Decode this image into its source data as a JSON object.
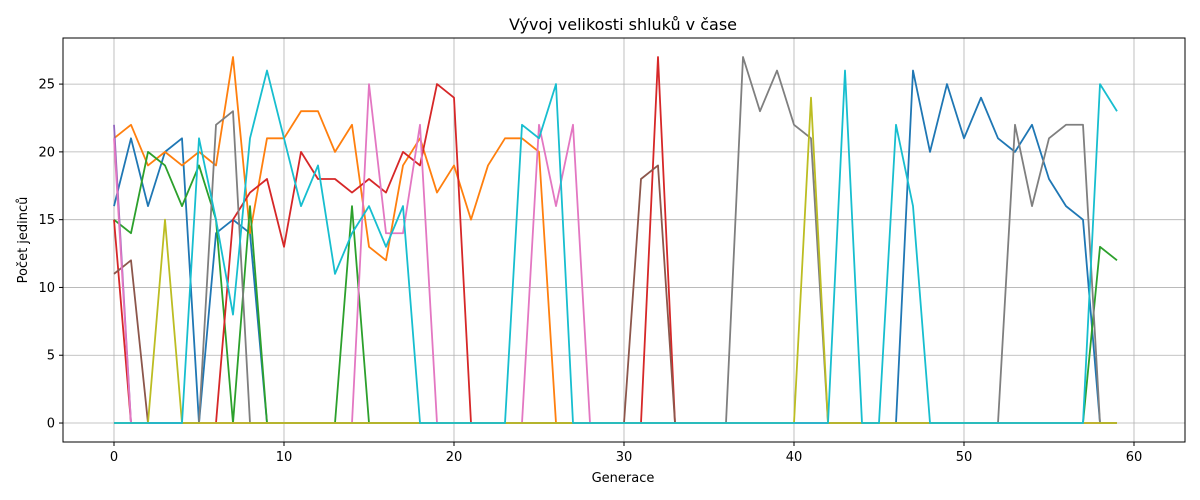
{
  "chart_data": {
    "type": "line",
    "title": "Vývoj velikosti shluků v čase",
    "xlabel": "Generace",
    "ylabel": "Počet jedinců",
    "xlim": [
      -3,
      63
    ],
    "ylim": [
      -1.4,
      28.4
    ],
    "xticks": [
      0,
      10,
      20,
      30,
      40,
      50,
      60
    ],
    "yticks": [
      0,
      5,
      10,
      15,
      20,
      25
    ],
    "grid": true,
    "x": [
      0,
      1,
      2,
      3,
      4,
      5,
      6,
      7,
      8,
      9,
      10,
      11,
      12,
      13,
      14,
      15,
      16,
      17,
      18,
      19,
      20,
      21,
      22,
      23,
      24,
      25,
      26,
      27,
      28,
      29,
      30,
      31,
      32,
      33,
      34,
      35,
      36,
      37,
      38,
      39,
      40,
      41,
      42,
      43,
      44,
      45,
      46,
      47,
      48,
      49,
      50,
      51,
      52,
      53,
      54,
      55,
      56,
      57,
      58,
      59
    ],
    "series": [
      {
        "color": "#1f77b4",
        "values": [
          16,
          21,
          16,
          20,
          21,
          0,
          14,
          15,
          14,
          0,
          0,
          0,
          0,
          0,
          0,
          0,
          0,
          0,
          0,
          0,
          0,
          0,
          0,
          0,
          0,
          0,
          0,
          0,
          0,
          0,
          0,
          0,
          0,
          0,
          0,
          0,
          0,
          0,
          0,
          0,
          0,
          0,
          0,
          0,
          0,
          0,
          0,
          26,
          20,
          25,
          21,
          24,
          21,
          20,
          22,
          18,
          16,
          15,
          0,
          0
        ]
      },
      {
        "color": "#ff7f0e",
        "values": [
          21,
          22,
          19,
          20,
          19,
          20,
          19,
          27,
          14,
          21,
          21,
          23,
          23,
          20,
          22,
          13,
          12,
          19,
          21,
          17,
          19,
          15,
          19,
          21,
          21,
          20,
          0,
          0,
          0,
          0,
          0,
          0,
          0,
          0,
          0,
          0,
          0,
          0,
          0,
          0,
          0,
          0,
          0,
          0,
          0,
          0,
          0,
          0,
          0,
          0,
          0,
          0,
          0,
          0,
          0,
          0,
          0,
          0,
          0,
          0
        ]
      },
      {
        "color": "#2ca02c",
        "values": [
          15,
          14,
          20,
          19,
          16,
          19,
          15,
          0,
          16,
          0,
          0,
          0,
          0,
          0,
          16,
          0,
          0,
          0,
          0,
          0,
          0,
          0,
          0,
          0,
          0,
          0,
          0,
          0,
          0,
          0,
          0,
          0,
          0,
          0,
          0,
          0,
          0,
          0,
          0,
          0,
          0,
          0,
          0,
          0,
          0,
          0,
          0,
          0,
          0,
          0,
          0,
          0,
          0,
          0,
          0,
          0,
          0,
          0,
          13,
          12
        ]
      },
      {
        "color": "#d62728",
        "values": [
          15,
          0,
          0,
          0,
          0,
          0,
          0,
          15,
          17,
          18,
          13,
          20,
          18,
          18,
          17,
          18,
          17,
          20,
          19,
          25,
          24,
          0,
          0,
          0,
          0,
          0,
          0,
          0,
          0,
          0,
          0,
          0,
          27,
          0,
          0,
          0,
          0,
          0,
          0,
          0,
          0,
          0,
          0,
          0,
          0,
          0,
          0,
          0,
          0,
          0,
          0,
          0,
          0,
          0,
          0,
          0,
          0,
          0,
          0,
          0
        ]
      },
      {
        "color": "#9467bd",
        "values": [
          22,
          0,
          0,
          0,
          0,
          0,
          0,
          0,
          0,
          0,
          0,
          0,
          0,
          0,
          0,
          0,
          0,
          0,
          0,
          0,
          0,
          0,
          0,
          0,
          0,
          0,
          0,
          0,
          0,
          0,
          0,
          0,
          0,
          0,
          0,
          0,
          0,
          0,
          0,
          0,
          0,
          0,
          0,
          0,
          0,
          0,
          0,
          0,
          0,
          0,
          0,
          0,
          0,
          0,
          0,
          0,
          0,
          0,
          0,
          0
        ]
      },
      {
        "color": "#8c564b",
        "values": [
          11,
          12,
          0,
          0,
          0,
          0,
          0,
          0,
          0,
          0,
          0,
          0,
          0,
          0,
          0,
          0,
          0,
          0,
          0,
          0,
          0,
          0,
          0,
          0,
          0,
          0,
          0,
          0,
          0,
          0,
          0,
          18,
          19,
          0,
          0,
          0,
          0,
          0,
          0,
          0,
          0,
          0,
          0,
          0,
          0,
          0,
          0,
          0,
          0,
          0,
          0,
          0,
          0,
          0,
          0,
          0,
          0,
          0,
          0,
          0
        ]
      },
      {
        "color": "#e377c2",
        "values": [
          21,
          0,
          0,
          0,
          0,
          0,
          0,
          0,
          0,
          0,
          0,
          0,
          0,
          0,
          0,
          25,
          14,
          14,
          22,
          0,
          0,
          0,
          0,
          0,
          0,
          22,
          16,
          22,
          0,
          0,
          0,
          0,
          0,
          0,
          0,
          0,
          0,
          0,
          0,
          0,
          0,
          0,
          0,
          0,
          0,
          0,
          0,
          0,
          0,
          0,
          0,
          0,
          0,
          0,
          0,
          0,
          0,
          0,
          0,
          0
        ]
      },
      {
        "color": "#7f7f7f",
        "values": [
          0,
          0,
          0,
          0,
          0,
          0,
          22,
          23,
          0,
          0,
          0,
          0,
          0,
          0,
          0,
          0,
          0,
          0,
          0,
          0,
          0,
          0,
          0,
          0,
          0,
          0,
          0,
          0,
          0,
          0,
          0,
          0,
          0,
          0,
          0,
          0,
          0,
          27,
          23,
          26,
          22,
          21,
          0,
          0,
          0,
          0,
          0,
          0,
          0,
          0,
          0,
          0,
          0,
          22,
          16,
          21,
          22,
          22,
          0,
          0
        ]
      },
      {
        "color": "#bcbd22",
        "values": [
          0,
          0,
          0,
          15,
          0,
          0,
          0,
          0,
          0,
          0,
          0,
          0,
          0,
          0,
          0,
          0,
          0,
          0,
          0,
          0,
          0,
          0,
          0,
          0,
          0,
          0,
          0,
          0,
          0,
          0,
          0,
          0,
          0,
          0,
          0,
          0,
          0,
          0,
          0,
          0,
          0,
          24,
          0,
          0,
          0,
          0,
          0,
          0,
          0,
          0,
          0,
          0,
          0,
          0,
          0,
          0,
          0,
          0,
          0,
          0
        ]
      },
      {
        "color": "#17becf",
        "values": [
          0,
          0,
          0,
          0,
          0,
          21,
          15,
          8,
          21,
          26,
          21,
          16,
          19,
          11,
          14,
          16,
          13,
          16,
          0,
          0,
          0,
          0,
          0,
          0,
          22,
          21,
          25,
          0,
          0,
          0,
          0,
          0,
          0,
          0,
          0,
          0,
          0,
          0,
          0,
          0,
          0,
          0,
          0,
          26,
          0,
          0,
          22,
          16,
          0,
          0,
          0,
          0,
          0,
          0,
          0,
          0,
          0,
          0,
          25,
          23
        ]
      }
    ]
  }
}
